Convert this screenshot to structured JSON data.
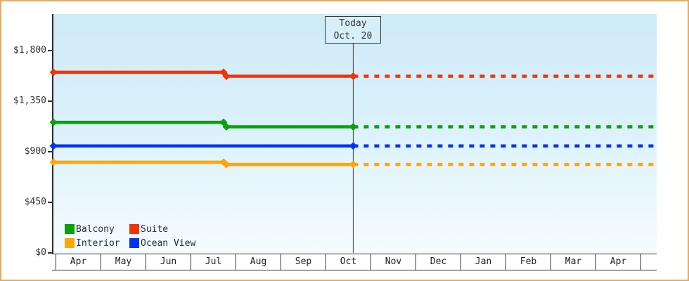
{
  "chart_data": {
    "type": "line",
    "title": "",
    "x_axis": {
      "categories": [
        "Apr",
        "May",
        "Jun",
        "Jul",
        "Aug",
        "Sep",
        "Oct",
        "Nov",
        "Dec",
        "Jan",
        "Feb",
        "Mar",
        "Apr"
      ]
    },
    "y_axis": {
      "tick_labels": [
        "$0",
        "$450",
        "$900",
        "$1,350",
        "$1,800"
      ],
      "tick_values": [
        0,
        450,
        900,
        1350,
        1800
      ],
      "ylim": [
        0,
        2100
      ]
    },
    "today_marker": {
      "line1": "Today",
      "line2": "Oct. 20",
      "position": 6.6
    },
    "price_change_position": 3.75,
    "forecast_end_position": 13.31,
    "series": [
      {
        "name": "Suite",
        "color": "#f23305",
        "price_initial": 1610,
        "price_current": 1575
      },
      {
        "name": "Balcony",
        "color": "#0aa00a",
        "price_initial": 1165,
        "price_current": 1125
      },
      {
        "name": "Ocean View",
        "color": "#0333f0",
        "price_initial": 955,
        "price_current": 955
      },
      {
        "name": "Interior",
        "color": "#ffa50a",
        "price_initial": 810,
        "price_current": 790
      }
    ],
    "legend": {
      "position": "bottom-left",
      "items": [
        {
          "label": "Balcony",
          "color": "#0aa00a"
        },
        {
          "label": "Suite",
          "color": "#f23305"
        },
        {
          "label": "Interior",
          "color": "#ffa50a"
        },
        {
          "label": "Ocean View",
          "color": "#0333f0"
        }
      ]
    },
    "grid": "off",
    "styles": {
      "frame_border": "#e9a95b",
      "plot_bg_top": "#cfeaf8",
      "plot_bg_bottom": "#f5fcff",
      "axis_color": "#2e2e2e",
      "today_line_color": "#3a3a3a",
      "text_color": "#333333"
    }
  }
}
